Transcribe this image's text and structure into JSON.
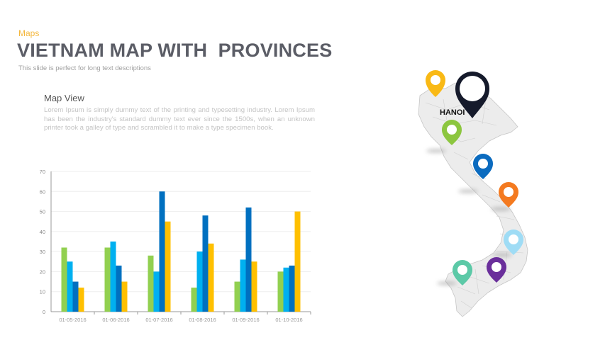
{
  "header": {
    "category": "Maps",
    "title": "VIETNAM MAP WITH  PROVINCES",
    "subtitle": "This slide is perfect for long text descriptions"
  },
  "content": {
    "section_title": "Map View",
    "body": "Lorem Ipsum is simply dummy text of the printing and typesetting industry. Lorem Ipsum has been the industry's standard dummy text ever since the 1500s, when an unknown printer took a galley of type and scrambled it to make a type specimen book."
  },
  "map": {
    "capital_label": "HANOI",
    "pins": [
      {
        "name": "pin-yellow",
        "color": "#f9b915"
      },
      {
        "name": "pin-hanoi",
        "color": "#151a2b"
      },
      {
        "name": "pin-green",
        "color": "#8cc63f"
      },
      {
        "name": "pin-blue",
        "color": "#0b6bbf"
      },
      {
        "name": "pin-orange",
        "color": "#f47a20"
      },
      {
        "name": "pin-light-blue",
        "color": "#9fdcf5"
      },
      {
        "name": "pin-teal",
        "color": "#5cc9a7"
      },
      {
        "name": "pin-purple",
        "color": "#6a2f9b"
      }
    ]
  },
  "chart_data": {
    "type": "bar",
    "title": "",
    "xlabel": "",
    "ylabel": "",
    "ylim": [
      0,
      70
    ],
    "yticks": [
      0,
      10,
      20,
      30,
      40,
      50,
      60,
      70
    ],
    "grid": true,
    "legend": "none",
    "categories": [
      "01-05-2016",
      "01-06-2016",
      "01-07-2016",
      "01-08-2016",
      "01-09-2016",
      "01-10-2016"
    ],
    "series": [
      {
        "name": "Series 1",
        "color": "#92d050",
        "values": [
          32,
          32,
          28,
          12,
          15,
          20
        ]
      },
      {
        "name": "Series 2",
        "color": "#00b0f0",
        "values": [
          25,
          35,
          20,
          30,
          26,
          22
        ]
      },
      {
        "name": "Series 3",
        "color": "#0070c0",
        "values": [
          15,
          23,
          60,
          48,
          52,
          23
        ]
      },
      {
        "name": "Series 4",
        "color": "#ffc000",
        "values": [
          12,
          15,
          45,
          34,
          25,
          50
        ]
      }
    ]
  }
}
